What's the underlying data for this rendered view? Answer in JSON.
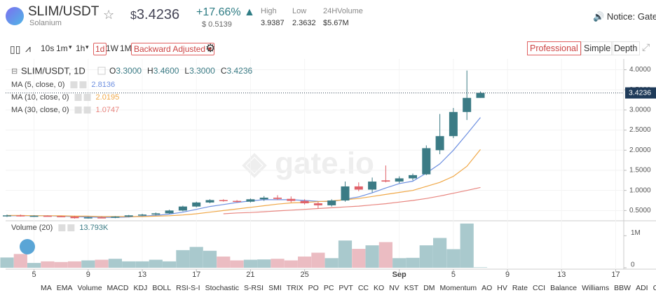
{
  "header": {
    "base": "SLIM",
    "quote": "/USDT",
    "name": "Solanium",
    "currency": "$",
    "price": "3.4236",
    "change": "+17.66%",
    "change_amount": "$ 0.5139",
    "stats": [
      {
        "label": "High",
        "value": "3.9387"
      },
      {
        "label": "Low",
        "value": "2.3632"
      },
      {
        "label": "24HVolume",
        "value": "$5.67M"
      }
    ],
    "notice": "Notice: Gate."
  },
  "toolbar": {
    "intervals": [
      "10s",
      "1m",
      "1h",
      "1d",
      "1W",
      "1M"
    ],
    "active_interval": "1d",
    "adjust": "Backward Adjusted",
    "views": [
      "Professional",
      "Simple",
      "Depth"
    ],
    "active_view": "Professional"
  },
  "chart_data": {
    "type": "candlestick",
    "title": "SLIM/USDT, 1D",
    "last_bar_labels": [
      {
        "key": "O",
        "label": "3.3000"
      },
      {
        "key": "H",
        "label": "3.4600"
      },
      {
        "key": "L",
        "label": "3.3000"
      },
      {
        "key": "C",
        "label": "3.4236"
      }
    ],
    "categories": [
      null,
      null,
      "5",
      null,
      null,
      null,
      "9",
      null,
      null,
      null,
      "13",
      null,
      null,
      null,
      "17",
      null,
      null,
      null,
      "21",
      null,
      null,
      null,
      "25",
      null,
      null,
      null,
      null,
      null,
      null,
      "Sep",
      null,
      null,
      null,
      "5",
      null,
      null,
      null,
      "9",
      null,
      null,
      null,
      "13",
      null,
      null,
      null,
      "17"
    ],
    "open": [
      0.36,
      0.38,
      0.36,
      0.37,
      0.36,
      0.35,
      0.31,
      0.33,
      0.32,
      0.35,
      0.38,
      0.4,
      0.43,
      0.5,
      0.6,
      0.7,
      0.76,
      0.74,
      0.72,
      0.78,
      0.82,
      0.79,
      0.74,
      0.68,
      0.63,
      0.75,
      1.1,
      1.02,
      1.25,
      1.22,
      1.3,
      1.4,
      2.0,
      2.35,
      2.95,
      3.3,
      null,
      null,
      null,
      null,
      null,
      null,
      null,
      null,
      null,
      null
    ],
    "high": [
      0.4,
      0.4,
      0.38,
      0.38,
      0.37,
      0.37,
      0.35,
      0.36,
      0.36,
      0.39,
      0.42,
      0.45,
      0.52,
      0.62,
      0.72,
      0.78,
      0.78,
      0.76,
      0.8,
      0.86,
      0.88,
      0.85,
      0.78,
      0.72,
      0.78,
      1.22,
      1.2,
      1.32,
      1.62,
      1.35,
      1.42,
      2.12,
      2.9,
      3.05,
      3.98,
      3.46,
      null,
      null,
      null,
      null,
      null,
      null,
      null,
      null,
      null,
      null
    ],
    "low": [
      0.34,
      0.35,
      0.34,
      0.35,
      0.34,
      0.3,
      0.3,
      0.31,
      0.31,
      0.34,
      0.36,
      0.38,
      0.42,
      0.48,
      0.58,
      0.68,
      0.72,
      0.7,
      0.7,
      0.74,
      0.76,
      0.7,
      0.65,
      0.55,
      0.6,
      0.72,
      0.98,
      0.95,
      1.2,
      1.18,
      1.25,
      1.38,
      1.9,
      2.3,
      2.75,
      3.3,
      null,
      null,
      null,
      null,
      null,
      null,
      null,
      null,
      null,
      null
    ],
    "close": [
      0.38,
      0.36,
      0.37,
      0.36,
      0.35,
      0.31,
      0.33,
      0.32,
      0.35,
      0.38,
      0.4,
      0.43,
      0.5,
      0.6,
      0.7,
      0.76,
      0.74,
      0.72,
      0.78,
      0.82,
      0.79,
      0.74,
      0.68,
      0.63,
      0.75,
      1.1,
      1.02,
      1.22,
      1.22,
      1.3,
      1.38,
      2.05,
      2.35,
      2.95,
      3.3,
      3.4236,
      null,
      null,
      null,
      null,
      null,
      null,
      null,
      null,
      null,
      null
    ],
    "up_color": "#3b7b85",
    "down_color": "#e0626a",
    "series": [
      {
        "name": "MA (5, close, 0)",
        "color": "#6d8fe0",
        "values": [
          0.37,
          0.37,
          0.37,
          0.37,
          0.36,
          0.35,
          0.34,
          0.33,
          0.33,
          0.34,
          0.36,
          0.38,
          0.41,
          0.46,
          0.53,
          0.6,
          0.65,
          0.7,
          0.74,
          0.77,
          0.77,
          0.77,
          0.75,
          0.73,
          0.72,
          0.78,
          0.84,
          0.94,
          1.06,
          1.17,
          1.23,
          1.43,
          1.66,
          2.0,
          2.4,
          2.8136,
          null,
          null,
          null,
          null,
          null,
          null,
          null,
          null,
          null,
          null
        ]
      },
      {
        "name": "MA (10, close, 0)",
        "color": "#f0a848",
        "values": [
          0.38,
          0.38,
          0.37,
          0.37,
          0.37,
          0.36,
          0.36,
          0.35,
          0.35,
          0.35,
          0.35,
          0.36,
          0.37,
          0.39,
          0.42,
          0.46,
          0.5,
          0.54,
          0.58,
          0.62,
          0.66,
          0.69,
          0.7,
          0.72,
          0.74,
          0.77,
          0.8,
          0.85,
          0.9,
          0.95,
          1.0,
          1.1,
          1.2,
          1.35,
          1.6,
          2.0195,
          null,
          null,
          null,
          null,
          null,
          null,
          null,
          null,
          null,
          null
        ]
      },
      {
        "name": "MA (30, close, 0)",
        "color": "#e8857f",
        "values": [
          null,
          null,
          null,
          null,
          null,
          null,
          null,
          null,
          null,
          null,
          null,
          null,
          null,
          null,
          null,
          null,
          0.42,
          0.44,
          0.45,
          0.47,
          0.49,
          0.51,
          0.53,
          0.55,
          0.57,
          0.59,
          0.61,
          0.64,
          0.67,
          0.71,
          0.75,
          0.8,
          0.86,
          0.93,
          1.0,
          1.0747,
          null,
          null,
          null,
          null,
          null,
          null,
          null,
          null,
          null,
          null
        ]
      }
    ],
    "ylim": [
      0.28,
      4.2
    ],
    "yticks": [
      {
        "value": 0.5,
        "label": "0.5000"
      },
      {
        "value": 1,
        "label": "1.0000"
      },
      {
        "value": 1.5,
        "label": "1.5000"
      },
      {
        "value": 2,
        "label": "2.0000"
      },
      {
        "value": 2.5,
        "label": "2.5000"
      },
      {
        "value": 3,
        "label": "3.0000"
      },
      {
        "value": 3.5,
        "label": "3.5000"
      },
      {
        "value": 4,
        "label": "4.0000"
      }
    ],
    "volume_title": "Volume (20)",
    "volume_value_label": "13.793K",
    "volume": [
      320000,
      430000,
      150000,
      200000,
      180000,
      200000,
      230000,
      250000,
      280000,
      200000,
      200000,
      250000,
      200000,
      550000,
      650000,
      530000,
      350000,
      230000,
      250000,
      260000,
      280000,
      230000,
      350000,
      470000,
      300000,
      850000,
      590000,
      700000,
      800000,
      300000,
      310000,
      700000,
      930000,
      580000,
      1380000,
      13793,
      null,
      null,
      null,
      null,
      null,
      null,
      null,
      null,
      null,
      null
    ],
    "volume_ylim": [
      0,
      1400000
    ],
    "volume_ticks": [
      0,
      {
        "value": 1000000,
        "label": "1M"
      }
    ],
    "grid": true
  },
  "indicators": [
    "MA",
    "EMA",
    "Volume",
    "MACD",
    "KDJ",
    "BOLL",
    "RSI-S-I",
    "Stochastic",
    "S-RSI",
    "SMI",
    "TRIX",
    "PO",
    "PC",
    "PVT",
    "CC",
    "KO",
    "NV",
    "KST",
    "DM",
    "Momentum",
    "AO",
    "HV",
    "Rate",
    "CCI",
    "Balance",
    "Williams",
    "BBW",
    "ADI",
    "C-RSI"
  ]
}
